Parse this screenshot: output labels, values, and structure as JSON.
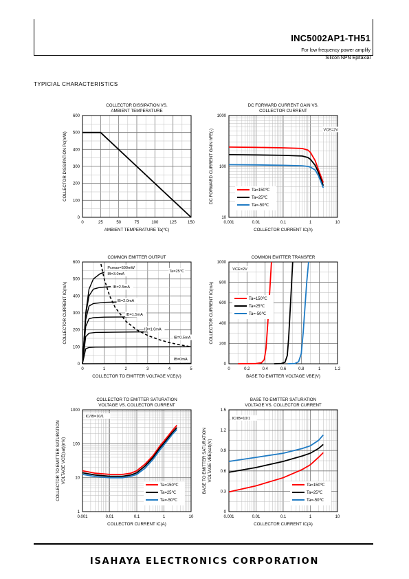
{
  "header": {
    "part_number": "INC5002AP1-TH51",
    "description_1": "For low frequency power amplify",
    "description_2": "Silicon NPN Epitaxial"
  },
  "section_title": "TYPICIAL   CHARACTERISTICS",
  "footer": {
    "company": "ISAHAYA ELECTRONICS CORPORATION"
  },
  "chart_data": [
    {
      "type": "line",
      "title": [
        "COLLECTOR DISSIPATION VS.",
        "AMBIENT TEMPERATURE"
      ],
      "xlabel": "AMBIENT TEMPERATURE  Ta(℃)",
      "ylabel": "COLLECTOR DISSIPATION  Pc(mW)",
      "xscale": "linear",
      "yscale": "linear",
      "xlim": [
        0,
        150
      ],
      "ylim": [
        0,
        600
      ],
      "xticks": [
        "0",
        "25",
        "50",
        "75",
        "100",
        "125",
        "150"
      ],
      "yticks": [
        "0",
        "100",
        "200",
        "300",
        "400",
        "500",
        "600"
      ],
      "grid": true,
      "series": [
        {
          "color": "#000000",
          "points": [
            [
              0,
              500
            ],
            [
              25,
              500
            ],
            [
              150,
              0
            ]
          ]
        }
      ],
      "annotations": []
    },
    {
      "type": "line",
      "title": [
        "DC FORWARD CURRENT GAIN VS.",
        "COLLECTOR CURRENT"
      ],
      "xlabel": "COLLECTOR  CURRENT  IC(A)",
      "ylabel": "DC FORWARD CURRENT GAIN  hFE(-)",
      "xscale": "log",
      "yscale": "log",
      "xlim": [
        0.001,
        10
      ],
      "ylim": [
        10,
        1000
      ],
      "xticks": [
        "0.001",
        "0.01",
        "0.1",
        "1",
        "10"
      ],
      "yticks": [
        "10",
        "100",
        "1000"
      ],
      "grid": true,
      "series": [
        {
          "name": "Ta=150℃",
          "color": "#ff0000",
          "points": [
            [
              0.001,
              240
            ],
            [
              0.01,
              237
            ],
            [
              0.1,
              232
            ],
            [
              0.5,
              225
            ],
            [
              0.8,
              210
            ],
            [
              1,
              190
            ],
            [
              1.5,
              130
            ],
            [
              2,
              85
            ],
            [
              3,
              48
            ]
          ]
        },
        {
          "name": "Ta=25℃",
          "color": "#000000",
          "points": [
            [
              0.001,
              170
            ],
            [
              0.01,
              168
            ],
            [
              0.1,
              165
            ],
            [
              0.5,
              160
            ],
            [
              0.8,
              150
            ],
            [
              1,
              138
            ],
            [
              1.5,
              105
            ],
            [
              2,
              75
            ],
            [
              3,
              42
            ]
          ]
        },
        {
          "name": "Ta=-50℃",
          "color": "#1f7bc4",
          "points": [
            [
              0.001,
              108
            ],
            [
              0.01,
              107
            ],
            [
              0.1,
              105
            ],
            [
              0.5,
              103
            ],
            [
              0.8,
              100
            ],
            [
              1,
              97
            ],
            [
              1.5,
              85
            ],
            [
              2,
              65
            ],
            [
              3,
              38
            ]
          ]
        }
      ],
      "annotations": [
        {
          "text": "VCE=2V",
          "x": 3.0,
          "y": 500
        }
      ],
      "legend": "bottom-left"
    },
    {
      "type": "line",
      "title": [
        "COMMON EMITTER OUTPUT"
      ],
      "xlabel": "COLLECTOR TO EMITTER VOLTAGE VCE(V)",
      "ylabel": "COLLECTOR CURRENT  IC(mA)",
      "xscale": "linear",
      "yscale": "linear",
      "xlim": [
        0,
        5
      ],
      "ylim": [
        0,
        600
      ],
      "xticks": [
        "0",
        "1",
        "2",
        "3",
        "4",
        "5"
      ],
      "yticks": [
        "0",
        "100",
        "200",
        "300",
        "400",
        "500",
        "600"
      ],
      "grid": true,
      "series": [
        {
          "name": "IB=3.0mA",
          "color": "#000000",
          "points": [
            [
              0,
              0
            ],
            [
              0.15,
              300
            ],
            [
              0.3,
              440
            ],
            [
              0.5,
              500
            ],
            [
              0.8,
              530
            ],
            [
              1,
              540
            ]
          ]
        },
        {
          "name": "IB=2.5mA",
          "color": "#000000",
          "points": [
            [
              0,
              0
            ],
            [
              0.15,
              290
            ],
            [
              0.3,
              400
            ],
            [
              0.5,
              440
            ],
            [
              0.8,
              450
            ],
            [
              1.3,
              455
            ]
          ]
        },
        {
          "name": "IB=2.0mA",
          "color": "#000000",
          "points": [
            [
              0,
              0
            ],
            [
              0.15,
              260
            ],
            [
              0.3,
              340
            ],
            [
              0.5,
              355
            ],
            [
              1,
              362
            ],
            [
              1.8,
              365
            ]
          ]
        },
        {
          "name": "IB=1.5mA",
          "color": "#000000",
          "points": [
            [
              0,
              0
            ],
            [
              0.15,
              220
            ],
            [
              0.3,
              265
            ],
            [
              0.5,
              272
            ],
            [
              1,
              275
            ],
            [
              2,
              276
            ],
            [
              2.5,
              277
            ]
          ]
        },
        {
          "name": "IB=1.0mA",
          "color": "#000000",
          "points": [
            [
              0,
              0
            ],
            [
              0.15,
              160
            ],
            [
              0.3,
              180
            ],
            [
              0.6,
              185
            ],
            [
              1.5,
              186
            ],
            [
              3,
              188
            ]
          ]
        },
        {
          "name": "IB=0.5mA",
          "color": "#000000",
          "points": [
            [
              0,
              0
            ],
            [
              0.15,
              88
            ],
            [
              0.3,
              96
            ],
            [
              0.6,
              98
            ],
            [
              2,
              99
            ],
            [
              5,
              100
            ]
          ]
        },
        {
          "name": "IB=0mA",
          "color": "#000000",
          "points": [
            [
              0,
              0
            ],
            [
              5,
              2
            ]
          ]
        },
        {
          "name": "Pcmax=500mW",
          "color": "#000000",
          "dashed": true,
          "points": [
            [
              0.85,
              588
            ],
            [
              1,
              500
            ],
            [
              1.25,
              400
            ],
            [
              1.5,
              333
            ],
            [
              2,
              250
            ],
            [
              2.5,
              200
            ],
            [
              3,
              167
            ],
            [
              3.5,
              143
            ],
            [
              4,
              125
            ],
            [
              4.5,
              111
            ],
            [
              5,
              100
            ]
          ]
        }
      ],
      "annotations": [
        {
          "text": "Ta=25℃",
          "x": 4.0,
          "y": 540
        },
        {
          "text": "Pcmax=500mW",
          "x": 1.15,
          "y": 560
        },
        {
          "text": "IB=3.0mA",
          "x": 1.15,
          "y": 523
        },
        {
          "text": "IB=2.5mA",
          "x": 1.4,
          "y": 445
        },
        {
          "text": "IB=2.0mA",
          "x": 1.6,
          "y": 365
        },
        {
          "text": "IB=1.5mA",
          "x": 2.0,
          "y": 283
        },
        {
          "text": "IB=1.0mA",
          "x": 2.85,
          "y": 197
        },
        {
          "text": "IB=0.5mA",
          "x": 4.2,
          "y": 148
        },
        {
          "text": "IB=0mA",
          "x": 4.2,
          "y": 20
        }
      ]
    },
    {
      "type": "line",
      "title": [
        "COMMON EMITTER TRANSFER"
      ],
      "xlabel": "BASE TO EMITTER VOLTAGE  VBE(V)",
      "ylabel": "COLLECTOR CURRENT  IC(mA)",
      "xscale": "linear",
      "yscale": "linear",
      "xlim": [
        0,
        1.2
      ],
      "ylim": [
        0,
        1000
      ],
      "xticks": [
        "0",
        "0.2",
        "0.4",
        "0.6",
        "0.8",
        "1",
        "1.2"
      ],
      "yticks": [
        "0",
        "200",
        "400",
        "600",
        "800",
        "1000"
      ],
      "grid": true,
      "series": [
        {
          "name": "Ta=150℃",
          "color": "#ff0000",
          "points": [
            [
              0.1,
              0
            ],
            [
              0.3,
              2
            ],
            [
              0.36,
              10
            ],
            [
              0.39,
              40
            ],
            [
              0.41,
              150
            ],
            [
              0.43,
              400
            ],
            [
              0.45,
              700
            ],
            [
              0.47,
              1000
            ]
          ]
        },
        {
          "name": "Ta=25℃",
          "color": "#000000",
          "points": [
            [
              0.5,
              0
            ],
            [
              0.58,
              3
            ],
            [
              0.62,
              15
            ],
            [
              0.645,
              80
            ],
            [
              0.66,
              250
            ],
            [
              0.675,
              500
            ],
            [
              0.69,
              750
            ],
            [
              0.705,
              1000
            ]
          ]
        },
        {
          "name": "Ta=-50℃",
          "color": "#1f7bc4",
          "points": [
            [
              0.65,
              0
            ],
            [
              0.73,
              3
            ],
            [
              0.77,
              20
            ],
            [
              0.8,
              100
            ],
            [
              0.82,
              300
            ],
            [
              0.84,
              550
            ],
            [
              0.86,
              800
            ],
            [
              0.88,
              1000
            ]
          ]
        }
      ],
      "annotations": [
        {
          "text": "VCE=2V",
          "x": 0.04,
          "y": 920
        }
      ],
      "legend": "mid-left"
    },
    {
      "type": "line",
      "title": [
        "COLLECTOR TO EMITTER SATURATION",
        "VOLTAGE VS. COLLECTOR CURRENT"
      ],
      "xlabel": "COLLECTOR  CURRENT  IC(A)",
      "ylabel": [
        "COLLECTOR TO EMITTER SATURATION",
        "VOLTAGE  VCE(sat)(mV)"
      ],
      "xscale": "log",
      "yscale": "log",
      "xlim": [
        0.001,
        10
      ],
      "ylim": [
        1,
        1000
      ],
      "xticks": [
        "0.001",
        "0.01",
        "0.1",
        "1",
        "10"
      ],
      "yticks": [
        "1",
        "10",
        "100",
        "1000"
      ],
      "grid": true,
      "series": [
        {
          "name": "Ta=150℃",
          "color": "#ff0000",
          "points": [
            [
              0.001,
              16
            ],
            [
              0.003,
              13.5
            ],
            [
              0.01,
              12.5
            ],
            [
              0.03,
              12.5
            ],
            [
              0.06,
              13.5
            ],
            [
              0.1,
              16
            ],
            [
              0.2,
              25
            ],
            [
              0.4,
              45
            ],
            [
              0.7,
              85
            ],
            [
              1,
              120
            ],
            [
              2,
              240
            ],
            [
              3,
              350
            ]
          ]
        },
        {
          "name": "Ta=25℃",
          "color": "#000000",
          "points": [
            [
              0.001,
              14
            ],
            [
              0.003,
              12
            ],
            [
              0.01,
              11
            ],
            [
              0.03,
              11
            ],
            [
              0.06,
              12
            ],
            [
              0.1,
              14
            ],
            [
              0.2,
              22
            ],
            [
              0.4,
              40
            ],
            [
              0.7,
              75
            ],
            [
              1,
              105
            ],
            [
              2,
              210
            ],
            [
              3,
              300
            ]
          ]
        },
        {
          "name": "Ta=-50℃",
          "color": "#1f7bc4",
          "points": [
            [
              0.001,
              12.5
            ],
            [
              0.003,
              10.8
            ],
            [
              0.01,
              10
            ],
            [
              0.03,
              10
            ],
            [
              0.06,
              11
            ],
            [
              0.1,
              12.5
            ],
            [
              0.2,
              19
            ],
            [
              0.4,
              35
            ],
            [
              0.7,
              65
            ],
            [
              1,
              92
            ],
            [
              2,
              185
            ],
            [
              3,
              265
            ]
          ]
        }
      ],
      "annotations": [
        {
          "text": "IC/IB=10/1",
          "x": 0.0013,
          "y": 600
        }
      ],
      "legend": "bottom-right"
    },
    {
      "type": "line",
      "title": [
        "BASE TO EMITTER SATURATION",
        "VOLTAGE VS. COLLECTOR CURRENT"
      ],
      "xlabel": "COLLECTOR  CURRENT  IC(A)",
      "ylabel": [
        "BASE TO EMITTER SATURATION",
        "VOLTAGE  VBE(sat)(V)"
      ],
      "xscale": "log",
      "yscale": "linear",
      "xlim": [
        0.001,
        10
      ],
      "ylim": [
        0,
        1.5
      ],
      "xticks": [
        "0.001",
        "0.01",
        "0.1",
        "1",
        "10"
      ],
      "yticks": [
        "0",
        "0.3",
        "0.6",
        "0.9",
        "1.2",
        "1.5"
      ],
      "grid": true,
      "series": [
        {
          "name": "Ta=150℃",
          "color": "#ff0000",
          "points": [
            [
              0.001,
              0.29
            ],
            [
              0.01,
              0.38
            ],
            [
              0.1,
              0.5
            ],
            [
              0.5,
              0.62
            ],
            [
              1,
              0.69
            ],
            [
              2,
              0.8
            ],
            [
              3,
              0.87
            ]
          ]
        },
        {
          "name": "Ta=25℃",
          "color": "#000000",
          "points": [
            [
              0.001,
              0.58
            ],
            [
              0.01,
              0.65
            ],
            [
              0.1,
              0.74
            ],
            [
              0.5,
              0.82
            ],
            [
              1,
              0.86
            ],
            [
              2,
              0.93
            ],
            [
              3,
              0.99
            ]
          ]
        },
        {
          "name": "Ta=-50℃",
          "color": "#1f7bc4",
          "points": [
            [
              0.001,
              0.74
            ],
            [
              0.01,
              0.8
            ],
            [
              0.1,
              0.86
            ],
            [
              0.5,
              0.93
            ],
            [
              1,
              0.97
            ],
            [
              2,
              1.05
            ],
            [
              3,
              1.13
            ]
          ]
        }
      ],
      "annotations": [
        {
          "text": "IC/IB=10/1",
          "x": 0.0013,
          "y": 1.36
        }
      ],
      "legend": "bottom-right"
    }
  ]
}
